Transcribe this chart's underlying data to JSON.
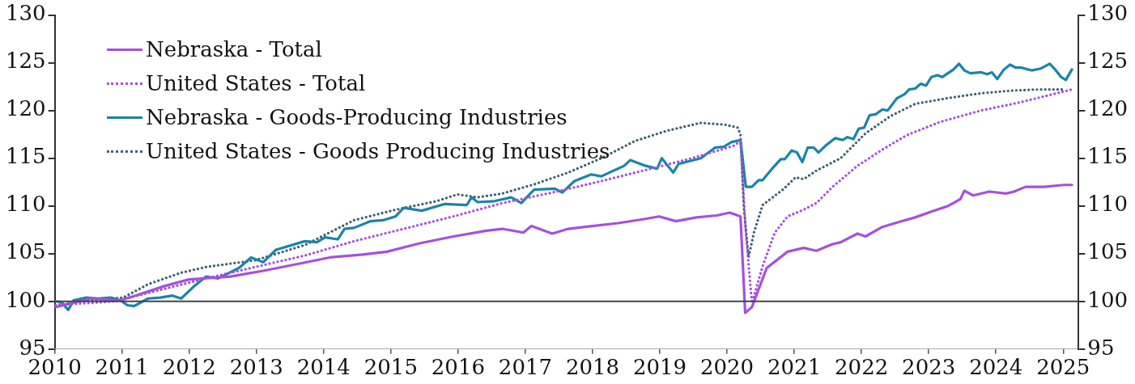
{
  "chart_data": {
    "type": "line",
    "xlim": [
      2010,
      2025.23
    ],
    "xticks": [
      2010,
      2011,
      2012,
      2013,
      2014,
      2015,
      2016,
      2017,
      2018,
      2019,
      2020,
      2021,
      2022,
      2023,
      2024,
      2025
    ],
    "ylim": [
      95,
      130
    ],
    "yticks": [
      95,
      100,
      105,
      110,
      115,
      120,
      125,
      130
    ],
    "y2lim": [
      95,
      130
    ],
    "y2ticks": [
      95,
      100,
      105,
      110,
      115,
      120,
      125,
      130
    ],
    "legend": "top left",
    "grid": false,
    "ref_lines": [
      {
        "axis": "y",
        "value": 100
      }
    ],
    "series": [
      {
        "name": "Nebraska - Total",
        "color": "#a550df",
        "line_style": "solid",
        "x": [
          2010.01,
          2010.53,
          2010.96,
          2011.2,
          2011.63,
          2012.0,
          2012.61,
          2013.1,
          2013.6,
          2014.09,
          2014.58,
          2014.94,
          2015.44,
          2015.93,
          2016.42,
          2016.66,
          2016.97,
          2017.09,
          2017.4,
          2017.64,
          2017.89,
          2018.38,
          2018.75,
          2018.99,
          2019.24,
          2019.55,
          2019.85,
          2020.04,
          2020.2,
          2020.27,
          2020.37,
          2020.59,
          2020.9,
          2021.14,
          2021.33,
          2021.57,
          2021.69,
          2021.94,
          2022.06,
          2022.31,
          2022.55,
          2022.8,
          2023.04,
          2023.29,
          2023.47,
          2023.53,
          2023.66,
          2023.9,
          2024.15,
          2024.27,
          2024.44,
          2024.72,
          2025.01,
          2025.13
        ],
        "values": [
          99.4,
          100.3,
          100.1,
          100.6,
          101.6,
          102.3,
          102.6,
          103.2,
          103.9,
          104.6,
          104.9,
          105.2,
          106.1,
          106.8,
          107.4,
          107.6,
          107.2,
          107.9,
          107.1,
          107.6,
          107.8,
          108.2,
          108.6,
          108.9,
          108.4,
          108.8,
          109.0,
          109.3,
          108.9,
          98.8,
          99.4,
          103.5,
          105.2,
          105.6,
          105.3,
          106.0,
          106.2,
          107.1,
          106.8,
          107.8,
          108.3,
          108.8,
          109.4,
          110.0,
          110.7,
          111.6,
          111.1,
          111.5,
          111.3,
          111.5,
          112.0,
          112.0,
          112.2,
          112.2
        ]
      },
      {
        "name": "United States - Total",
        "color": "#a550df",
        "line_style": "dotted",
        "x": [
          2010.01,
          2010.9,
          2011.51,
          2012.25,
          2012.98,
          2013.72,
          2014.45,
          2015.19,
          2015.93,
          2016.66,
          2017.4,
          2018.13,
          2018.87,
          2019.48,
          2020.1,
          2020.2,
          2020.28,
          2020.37,
          2020.53,
          2020.71,
          2020.9,
          2021.14,
          2021.33,
          2021.57,
          2021.94,
          2022.31,
          2022.67,
          2023.17,
          2023.78,
          2024.39,
          2025.13
        ],
        "values": [
          99.6,
          100.0,
          101.1,
          102.4,
          103.6,
          104.8,
          106.3,
          107.6,
          108.9,
          110.3,
          111.4,
          112.6,
          113.9,
          115.0,
          116.3,
          116.8,
          107.2,
          99.8,
          103.7,
          107.2,
          108.9,
          109.6,
          110.3,
          112.0,
          114.2,
          115.9,
          117.4,
          118.8,
          120.0,
          120.9,
          122.2
        ]
      },
      {
        "name": "Nebraska - Goods-Producing Industries",
        "color": "#1a84a8",
        "line_style": "solid",
        "x": [
          2010.01,
          2010.1,
          2010.2,
          2010.28,
          2010.47,
          2010.65,
          2010.83,
          2010.98,
          2011.08,
          2011.18,
          2011.39,
          2011.57,
          2011.75,
          2011.88,
          2012.06,
          2012.25,
          2012.43,
          2012.74,
          2012.92,
          2013.1,
          2013.29,
          2013.53,
          2013.72,
          2013.9,
          2014.02,
          2014.21,
          2014.31,
          2014.45,
          2014.7,
          2014.88,
          2015.07,
          2015.19,
          2015.46,
          2015.8,
          2016.13,
          2016.2,
          2016.29,
          2016.54,
          2016.79,
          2016.94,
          2017.13,
          2017.44,
          2017.55,
          2017.73,
          2017.98,
          2018.13,
          2018.47,
          2018.56,
          2018.79,
          2018.96,
          2019.03,
          2019.2,
          2019.28,
          2019.61,
          2019.82,
          2019.95,
          2020.07,
          2020.2,
          2020.28,
          2020.37,
          2020.47,
          2020.53,
          2020.67,
          2020.8,
          2020.86,
          2020.96,
          2021.04,
          2021.12,
          2021.2,
          2021.29,
          2021.36,
          2021.48,
          2021.61,
          2021.72,
          2021.79,
          2021.88,
          2021.96,
          2022.04,
          2022.12,
          2022.21,
          2022.31,
          2022.39,
          2022.53,
          2022.64,
          2022.71,
          2022.8,
          2022.88,
          2022.96,
          2023.04,
          2023.13,
          2023.2,
          2023.37,
          2023.45,
          2023.53,
          2023.62,
          2023.78,
          2023.87,
          2023.94,
          2024.02,
          2024.12,
          2024.21,
          2024.29,
          2024.37,
          2024.53,
          2024.67,
          2024.8,
          2024.88,
          2024.97,
          2025.04,
          2025.13
        ],
        "values": [
          100.0,
          99.9,
          99.1,
          100.1,
          100.4,
          100.3,
          100.4,
          100.1,
          99.6,
          99.5,
          100.3,
          100.4,
          100.6,
          100.3,
          101.5,
          102.6,
          102.4,
          103.5,
          104.6,
          104.1,
          105.4,
          105.9,
          106.3,
          106.2,
          106.7,
          106.5,
          107.6,
          107.7,
          108.4,
          108.5,
          108.9,
          109.8,
          109.5,
          110.2,
          110.1,
          110.9,
          110.4,
          110.5,
          110.9,
          110.3,
          111.7,
          111.8,
          111.4,
          112.6,
          113.3,
          113.1,
          114.2,
          114.8,
          114.2,
          113.9,
          115.0,
          113.5,
          114.4,
          115.0,
          116.1,
          116.2,
          116.7,
          116.9,
          112.0,
          112.0,
          112.7,
          112.7,
          113.9,
          114.9,
          114.9,
          115.8,
          115.6,
          114.6,
          116.1,
          116.1,
          115.6,
          116.4,
          117.1,
          116.9,
          117.2,
          117.0,
          118.1,
          118.2,
          119.5,
          119.6,
          120.1,
          120.0,
          121.3,
          121.7,
          122.2,
          122.3,
          122.8,
          122.6,
          123.5,
          123.7,
          123.5,
          124.3,
          124.9,
          124.2,
          123.9,
          124.0,
          123.8,
          124.0,
          123.3,
          124.3,
          124.8,
          124.5,
          124.5,
          124.2,
          124.4,
          124.9,
          124.3,
          123.5,
          123.2,
          124.3
        ]
      },
      {
        "name": "United States - Goods Producing Industries",
        "color": "#3f6170",
        "line_style": "dotted",
        "x": [
          2010.01,
          2010.53,
          2011.02,
          2011.39,
          2011.88,
          2012.25,
          2012.98,
          2013.72,
          2014.45,
          2015.07,
          2015.68,
          2015.99,
          2016.29,
          2016.66,
          2017.15,
          2017.64,
          2018.13,
          2018.63,
          2019.12,
          2019.61,
          2019.98,
          2020.16,
          2020.2,
          2020.25,
          2020.32,
          2020.4,
          2020.53,
          2020.83,
          2021.02,
          2021.14,
          2021.33,
          2021.69,
          2022.06,
          2022.43,
          2022.8,
          2023.29,
          2023.78,
          2024.27,
          2024.63,
          2025.01
        ],
        "values": [
          99.6,
          100.1,
          100.4,
          101.8,
          103.0,
          103.6,
          104.3,
          105.9,
          108.5,
          109.6,
          110.5,
          111.2,
          110.9,
          111.3,
          112.3,
          113.5,
          115.0,
          116.8,
          117.9,
          118.7,
          118.5,
          118.2,
          117.5,
          109.8,
          104.6,
          107.2,
          110.1,
          111.7,
          113.0,
          112.8,
          113.7,
          115.0,
          117.6,
          119.4,
          120.7,
          121.3,
          121.8,
          122.1,
          122.2,
          122.2
        ]
      }
    ]
  }
}
